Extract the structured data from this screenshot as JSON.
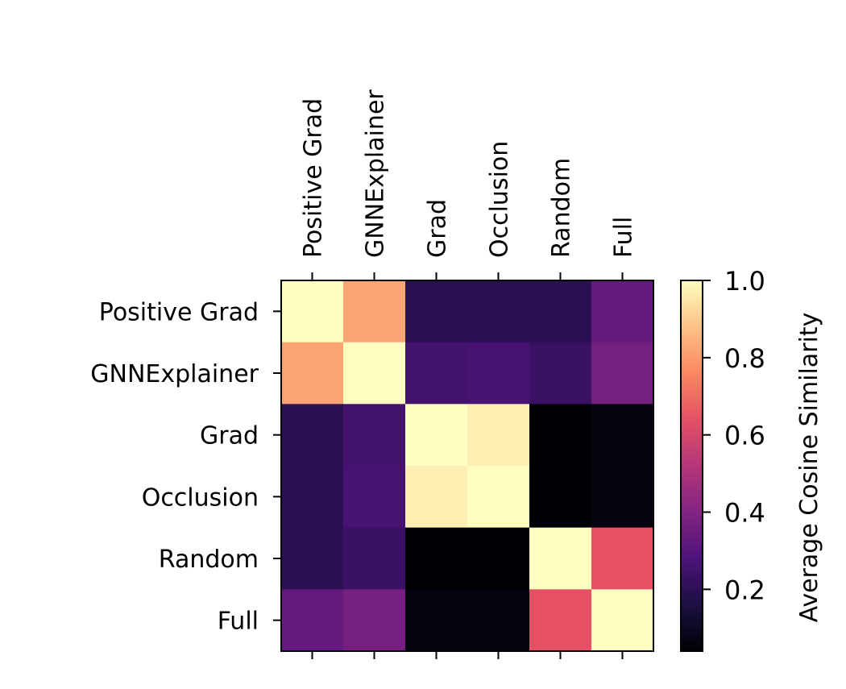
{
  "chart_data": {
    "type": "heatmap",
    "title": "",
    "row_labels": [
      "Positive Grad",
      "GNNExplainer",
      "Grad",
      "Occlusion",
      "Random",
      "Full"
    ],
    "col_labels": [
      "Positive Grad",
      "GNNExplainer",
      "Grad",
      "Occlusion",
      "Random",
      "Full"
    ],
    "values": [
      [
        1.0,
        0.82,
        0.19,
        0.19,
        0.19,
        0.33
      ],
      [
        0.82,
        1.0,
        0.25,
        0.26,
        0.23,
        0.37
      ],
      [
        0.19,
        0.25,
        1.0,
        0.97,
        0.04,
        0.06
      ],
      [
        0.19,
        0.26,
        0.97,
        1.0,
        0.04,
        0.06
      ],
      [
        0.19,
        0.23,
        0.04,
        0.04,
        1.0,
        0.64
      ],
      [
        0.33,
        0.37,
        0.06,
        0.06,
        0.64,
        1.0
      ]
    ],
    "colormap": "magma",
    "colorbar": {
      "label": "Average Cosine Similarity",
      "range": [
        0.04,
        1.0
      ],
      "ticks": [
        0.2,
        0.4,
        0.6,
        0.8,
        1.0
      ],
      "tick_labels": [
        "0.2",
        "0.4",
        "0.6",
        "0.8",
        "1.0"
      ]
    },
    "x_tick_position": "top"
  }
}
